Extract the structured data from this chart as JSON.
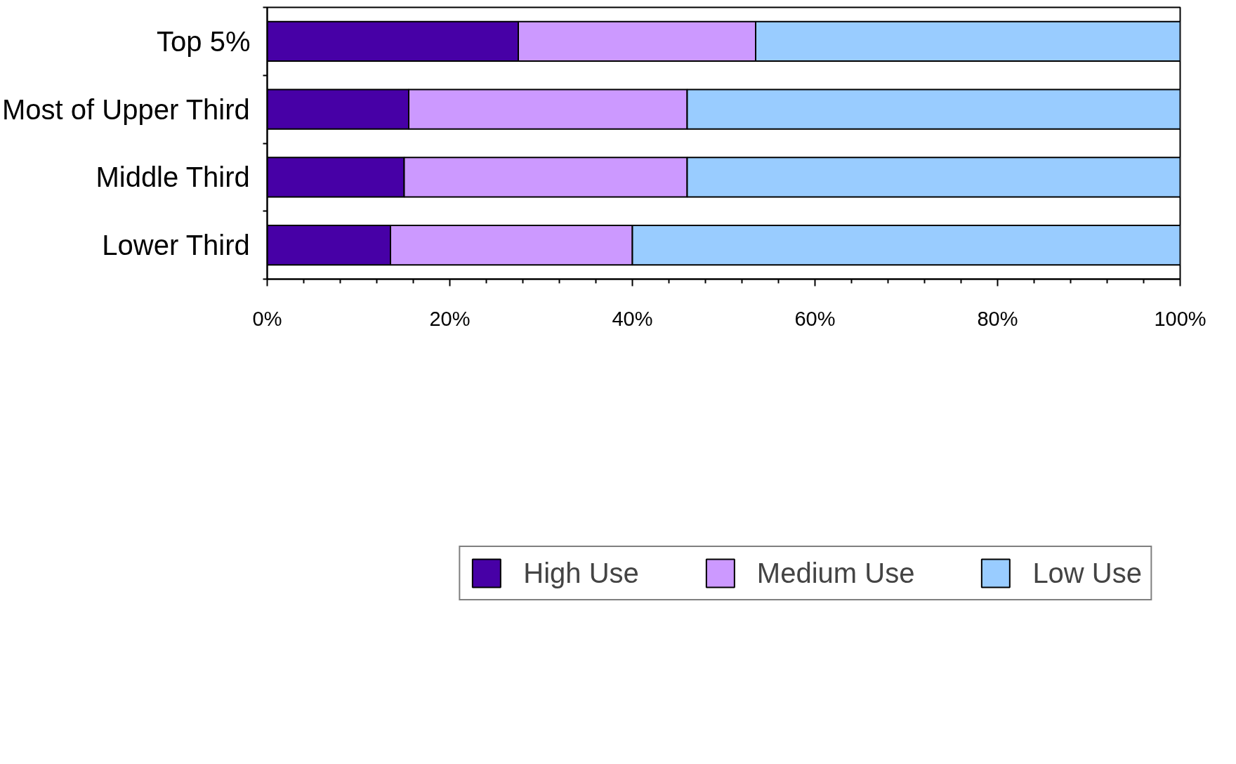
{
  "chart_data": {
    "type": "bar",
    "orientation": "horizontal",
    "stacked": true,
    "categories": [
      "Top 5%",
      "Most of Upper Third",
      "Middle Third",
      "Lower Third"
    ],
    "series": [
      {
        "name": "High Use",
        "color": "#4700a6",
        "values": [
          27.5,
          15.5,
          15,
          13.5
        ]
      },
      {
        "name": "Medium Use",
        "color": "#cc99ff",
        "values": [
          26,
          30.5,
          31,
          26.5
        ]
      },
      {
        "name": "Low Use",
        "color": "#99ccff",
        "values": [
          46.5,
          54,
          54,
          60
        ]
      }
    ],
    "xlim": [
      0,
      100
    ],
    "xticks": [
      {
        "value": 0,
        "label": "0%"
      },
      {
        "value": 4,
        "label": null
      },
      {
        "value": 8,
        "label": null
      },
      {
        "value": 12,
        "label": null
      },
      {
        "value": 16,
        "label": null
      },
      {
        "value": 20,
        "label": "20%"
      },
      {
        "value": 24,
        "label": null
      },
      {
        "value": 28,
        "label": null
      },
      {
        "value": 32,
        "label": null
      },
      {
        "value": 36,
        "label": null
      },
      {
        "value": 40,
        "label": "40%"
      },
      {
        "value": 44,
        "label": null
      },
      {
        "value": 48,
        "label": null
      },
      {
        "value": 52,
        "label": null
      },
      {
        "value": 56,
        "label": null
      },
      {
        "value": 60,
        "label": "60%"
      },
      {
        "value": 64,
        "label": null
      },
      {
        "value": 68,
        "label": null
      },
      {
        "value": 72,
        "label": null
      },
      {
        "value": 76,
        "label": null
      },
      {
        "value": 80,
        "label": "80%"
      },
      {
        "value": 84,
        "label": null
      },
      {
        "value": 88,
        "label": null
      },
      {
        "value": 92,
        "label": null
      },
      {
        "value": 96,
        "label": null
      },
      {
        "value": 100,
        "label": "100%"
      }
    ],
    "grid": false,
    "legend": "bottom"
  }
}
